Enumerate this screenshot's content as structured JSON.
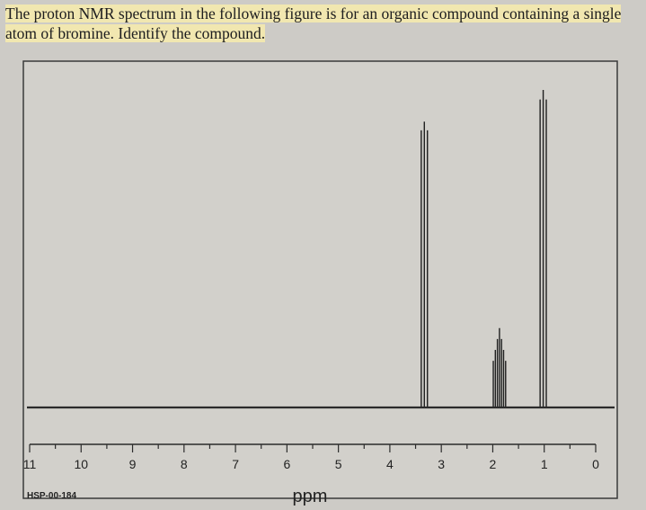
{
  "question": {
    "line1": "The proton NMR spectrum in the following figure is for an organic compound containing a single",
    "line2": "atom of bromine. Identify the compound."
  },
  "chart_data": {
    "type": "line",
    "title": "",
    "xlabel": "ppm",
    "ylabel": "",
    "xlim": [
      11,
      0
    ],
    "x_reversed": true,
    "x_ticks": [
      "11",
      "10",
      "9",
      "8",
      "7",
      "6",
      "5",
      "4",
      "3",
      "2",
      "1",
      "0"
    ],
    "code": "HSP-00-184",
    "grid": false,
    "peaks": [
      {
        "ppm": 3.33,
        "height": 0.9,
        "lines": [
          3.39,
          3.33,
          3.27
        ],
        "multiplicity": "triplet"
      },
      {
        "ppm": 1.87,
        "height": 0.25,
        "lines": [
          1.99,
          1.95,
          1.91,
          1.87,
          1.83,
          1.79,
          1.75
        ],
        "multiplicity": "multiplet"
      },
      {
        "ppm": 1.02,
        "height": 1.0,
        "lines": [
          1.08,
          1.02,
          0.96
        ],
        "multiplicity": "triplet"
      }
    ],
    "baseline": 0
  }
}
